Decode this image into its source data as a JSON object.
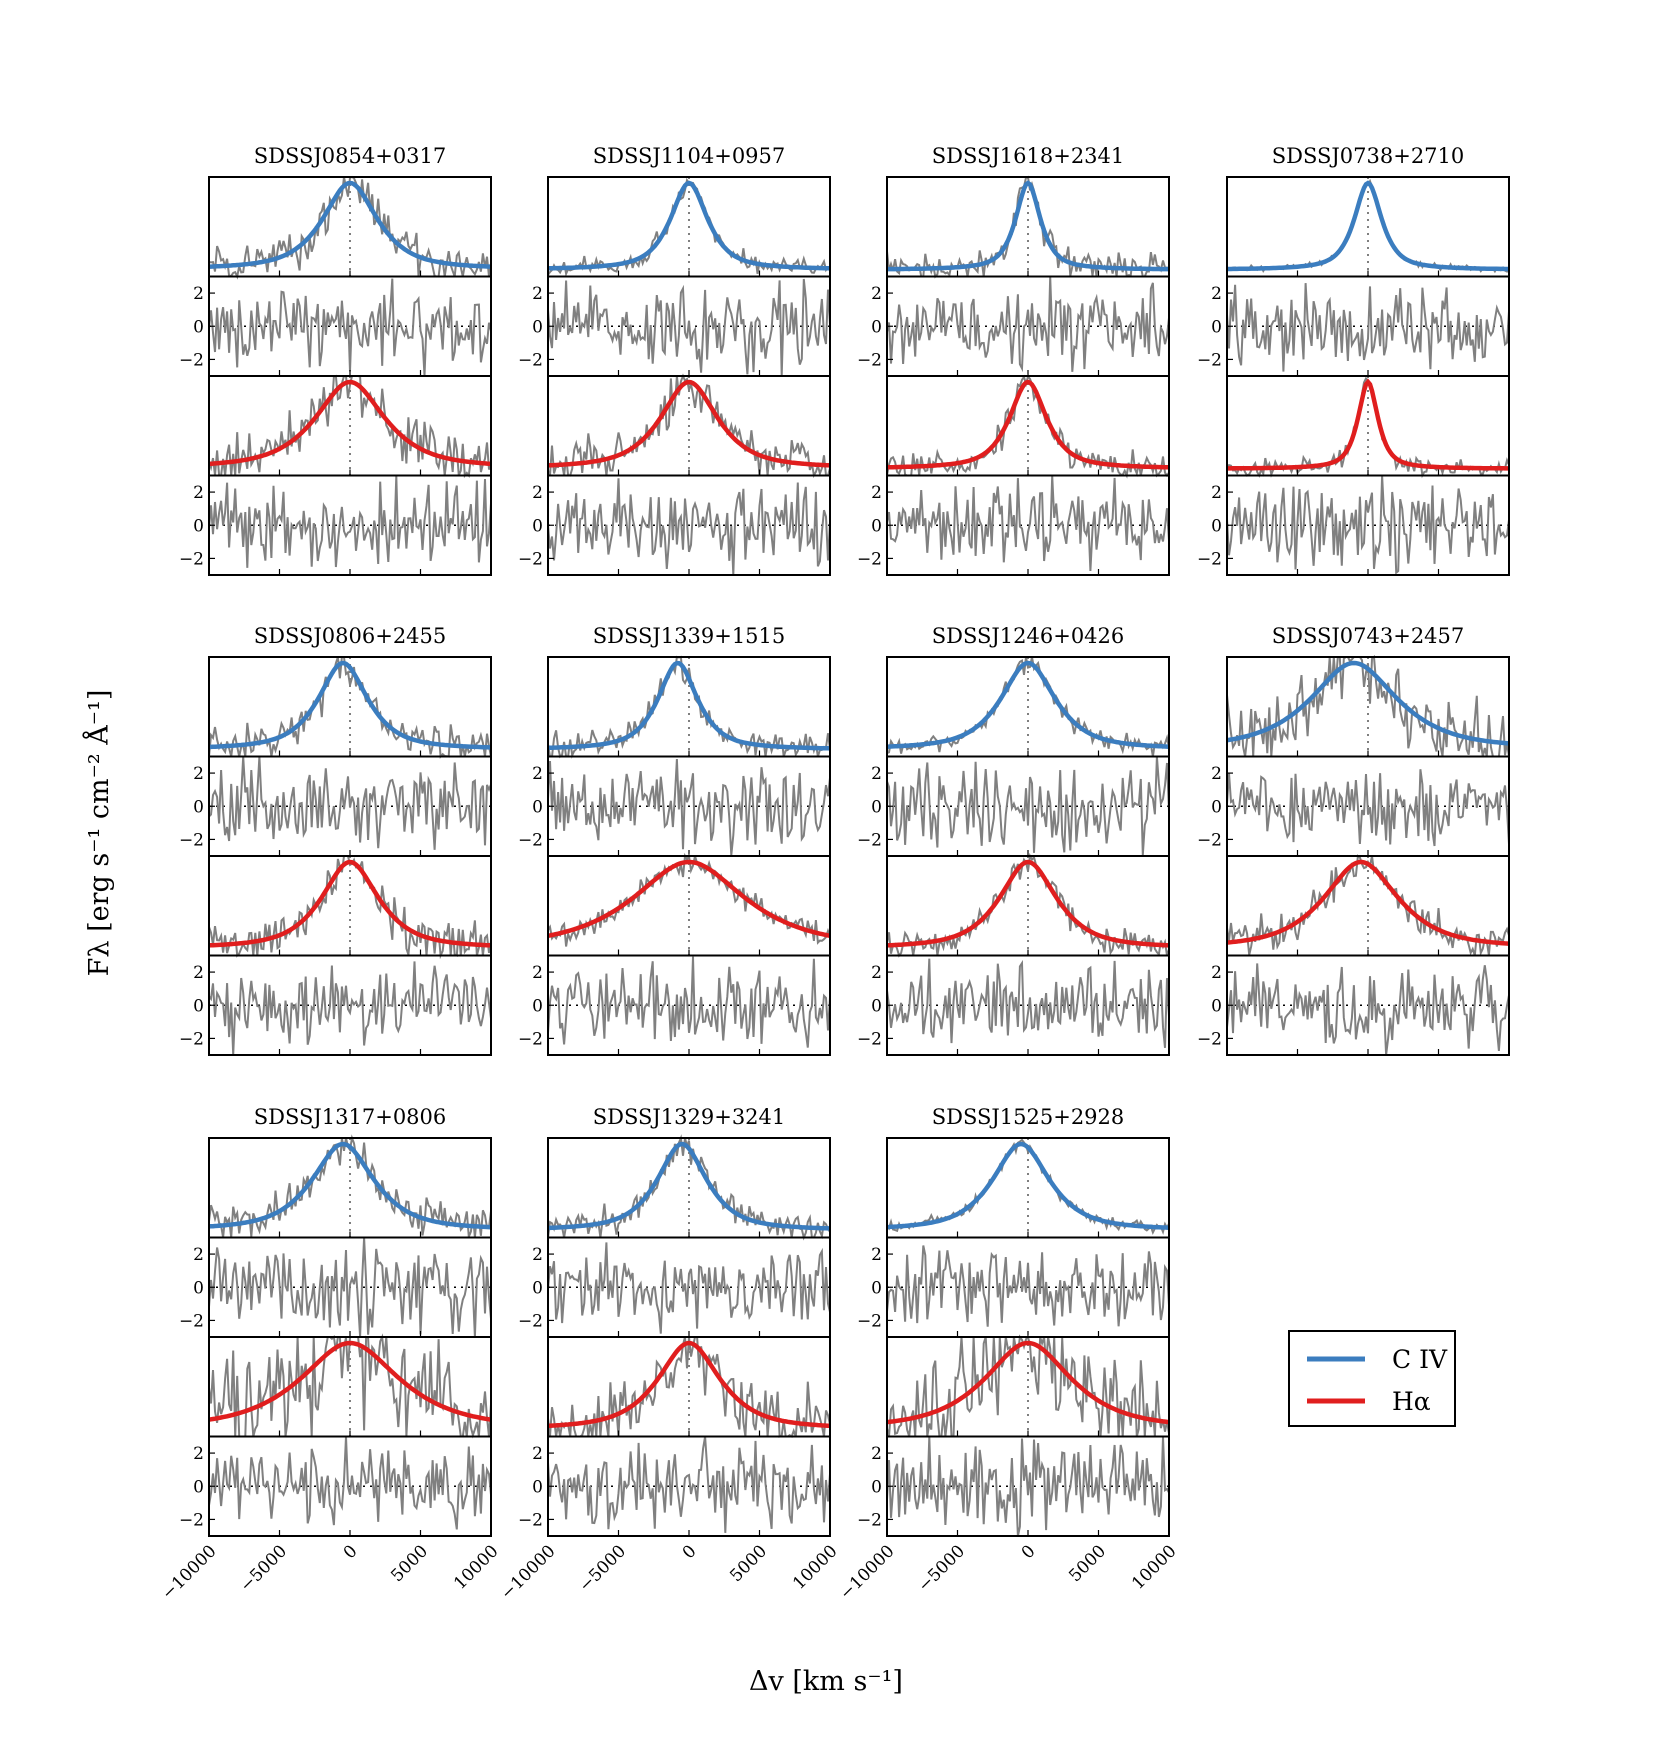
{
  "figure": {
    "ylabel": "Fλ [erg s⁻¹ cm⁻² Å⁻¹]",
    "xlabel": "Δv [km s⁻¹]"
  },
  "legend": {
    "civ_label": "C IV",
    "halpha_label": "Hα",
    "civ_color": "#3b7dbf",
    "halpha_color": "#e01e1e",
    "placement": "lower-right"
  },
  "chart_data": {
    "type": "line",
    "grid": false,
    "x_range": [
      -10000,
      10000
    ],
    "x_ticks": [
      -10000,
      -5000,
      0,
      5000,
      10000
    ],
    "x_tick_labels": [
      "−10000",
      "−5000",
      "0",
      "5000",
      "10000"
    ],
    "residual_range": [
      -3,
      3
    ],
    "residual_ticks": [
      2,
      0,
      -2
    ],
    "residual_tick_labels": [
      "2",
      "0",
      "−2"
    ],
    "data_color": "#808080",
    "fit_series": [
      "C IV",
      "Hα"
    ],
    "objects": [
      {
        "name": "SDSSJ0854+0317",
        "civ": {
          "center": 0,
          "width": 2200,
          "noise": 0.14
        },
        "ha": {
          "center": 0,
          "width": 2800,
          "noise": 0.18
        }
      },
      {
        "name": "SDSSJ1104+0957",
        "civ": {
          "center": 0,
          "width": 1500,
          "noise": 0.06
        },
        "ha": {
          "center": 0,
          "width": 2300,
          "noise": 0.15
        }
      },
      {
        "name": "SDSSJ1618+2341",
        "civ": {
          "center": 0,
          "width": 1000,
          "noise": 0.1
        },
        "ha": {
          "center": 0,
          "width": 1500,
          "noise": 0.1
        }
      },
      {
        "name": "SDSSJ0738+2710",
        "civ": {
          "center": 0,
          "width": 1100,
          "noise": 0.02
        },
        "ha": {
          "center": 0,
          "width": 800,
          "noise": 0.06
        }
      },
      {
        "name": "SDSSJ0806+2455",
        "civ": {
          "center": -500,
          "width": 2000,
          "noise": 0.13
        },
        "ha": {
          "center": 0,
          "width": 2300,
          "noise": 0.16
        }
      },
      {
        "name": "SDSSJ1339+1515",
        "civ": {
          "center": -800,
          "width": 1600,
          "noise": 0.1
        },
        "ha": {
          "center": 0,
          "width": 4500,
          "noise": 0.08
        }
      },
      {
        "name": "SDSSJ1246+0426",
        "civ": {
          "center": 0,
          "width": 2200,
          "noise": 0.06
        },
        "ha": {
          "center": 0,
          "width": 2300,
          "noise": 0.1
        }
      },
      {
        "name": "SDSSJ0743+2457",
        "civ": {
          "center": -1000,
          "width": 3500,
          "noise": 0.25
        },
        "ha": {
          "center": -500,
          "width": 3000,
          "noise": 0.12
        }
      },
      {
        "name": "SDSSJ1317+0806",
        "civ": {
          "center": -500,
          "width": 2500,
          "noise": 0.14
        },
        "ha": {
          "center": 0,
          "width": 4000,
          "noise": 0.42
        }
      },
      {
        "name": "SDSSJ1329+3241",
        "civ": {
          "center": -500,
          "width": 2000,
          "noise": 0.1
        },
        "ha": {
          "center": 0,
          "width": 2500,
          "noise": 0.25
        }
      },
      {
        "name": "SDSSJ1525+2928",
        "civ": {
          "center": -500,
          "width": 2300,
          "noise": 0.04
        },
        "ha": {
          "center": 0,
          "width": 3500,
          "noise": 0.4
        }
      }
    ]
  }
}
